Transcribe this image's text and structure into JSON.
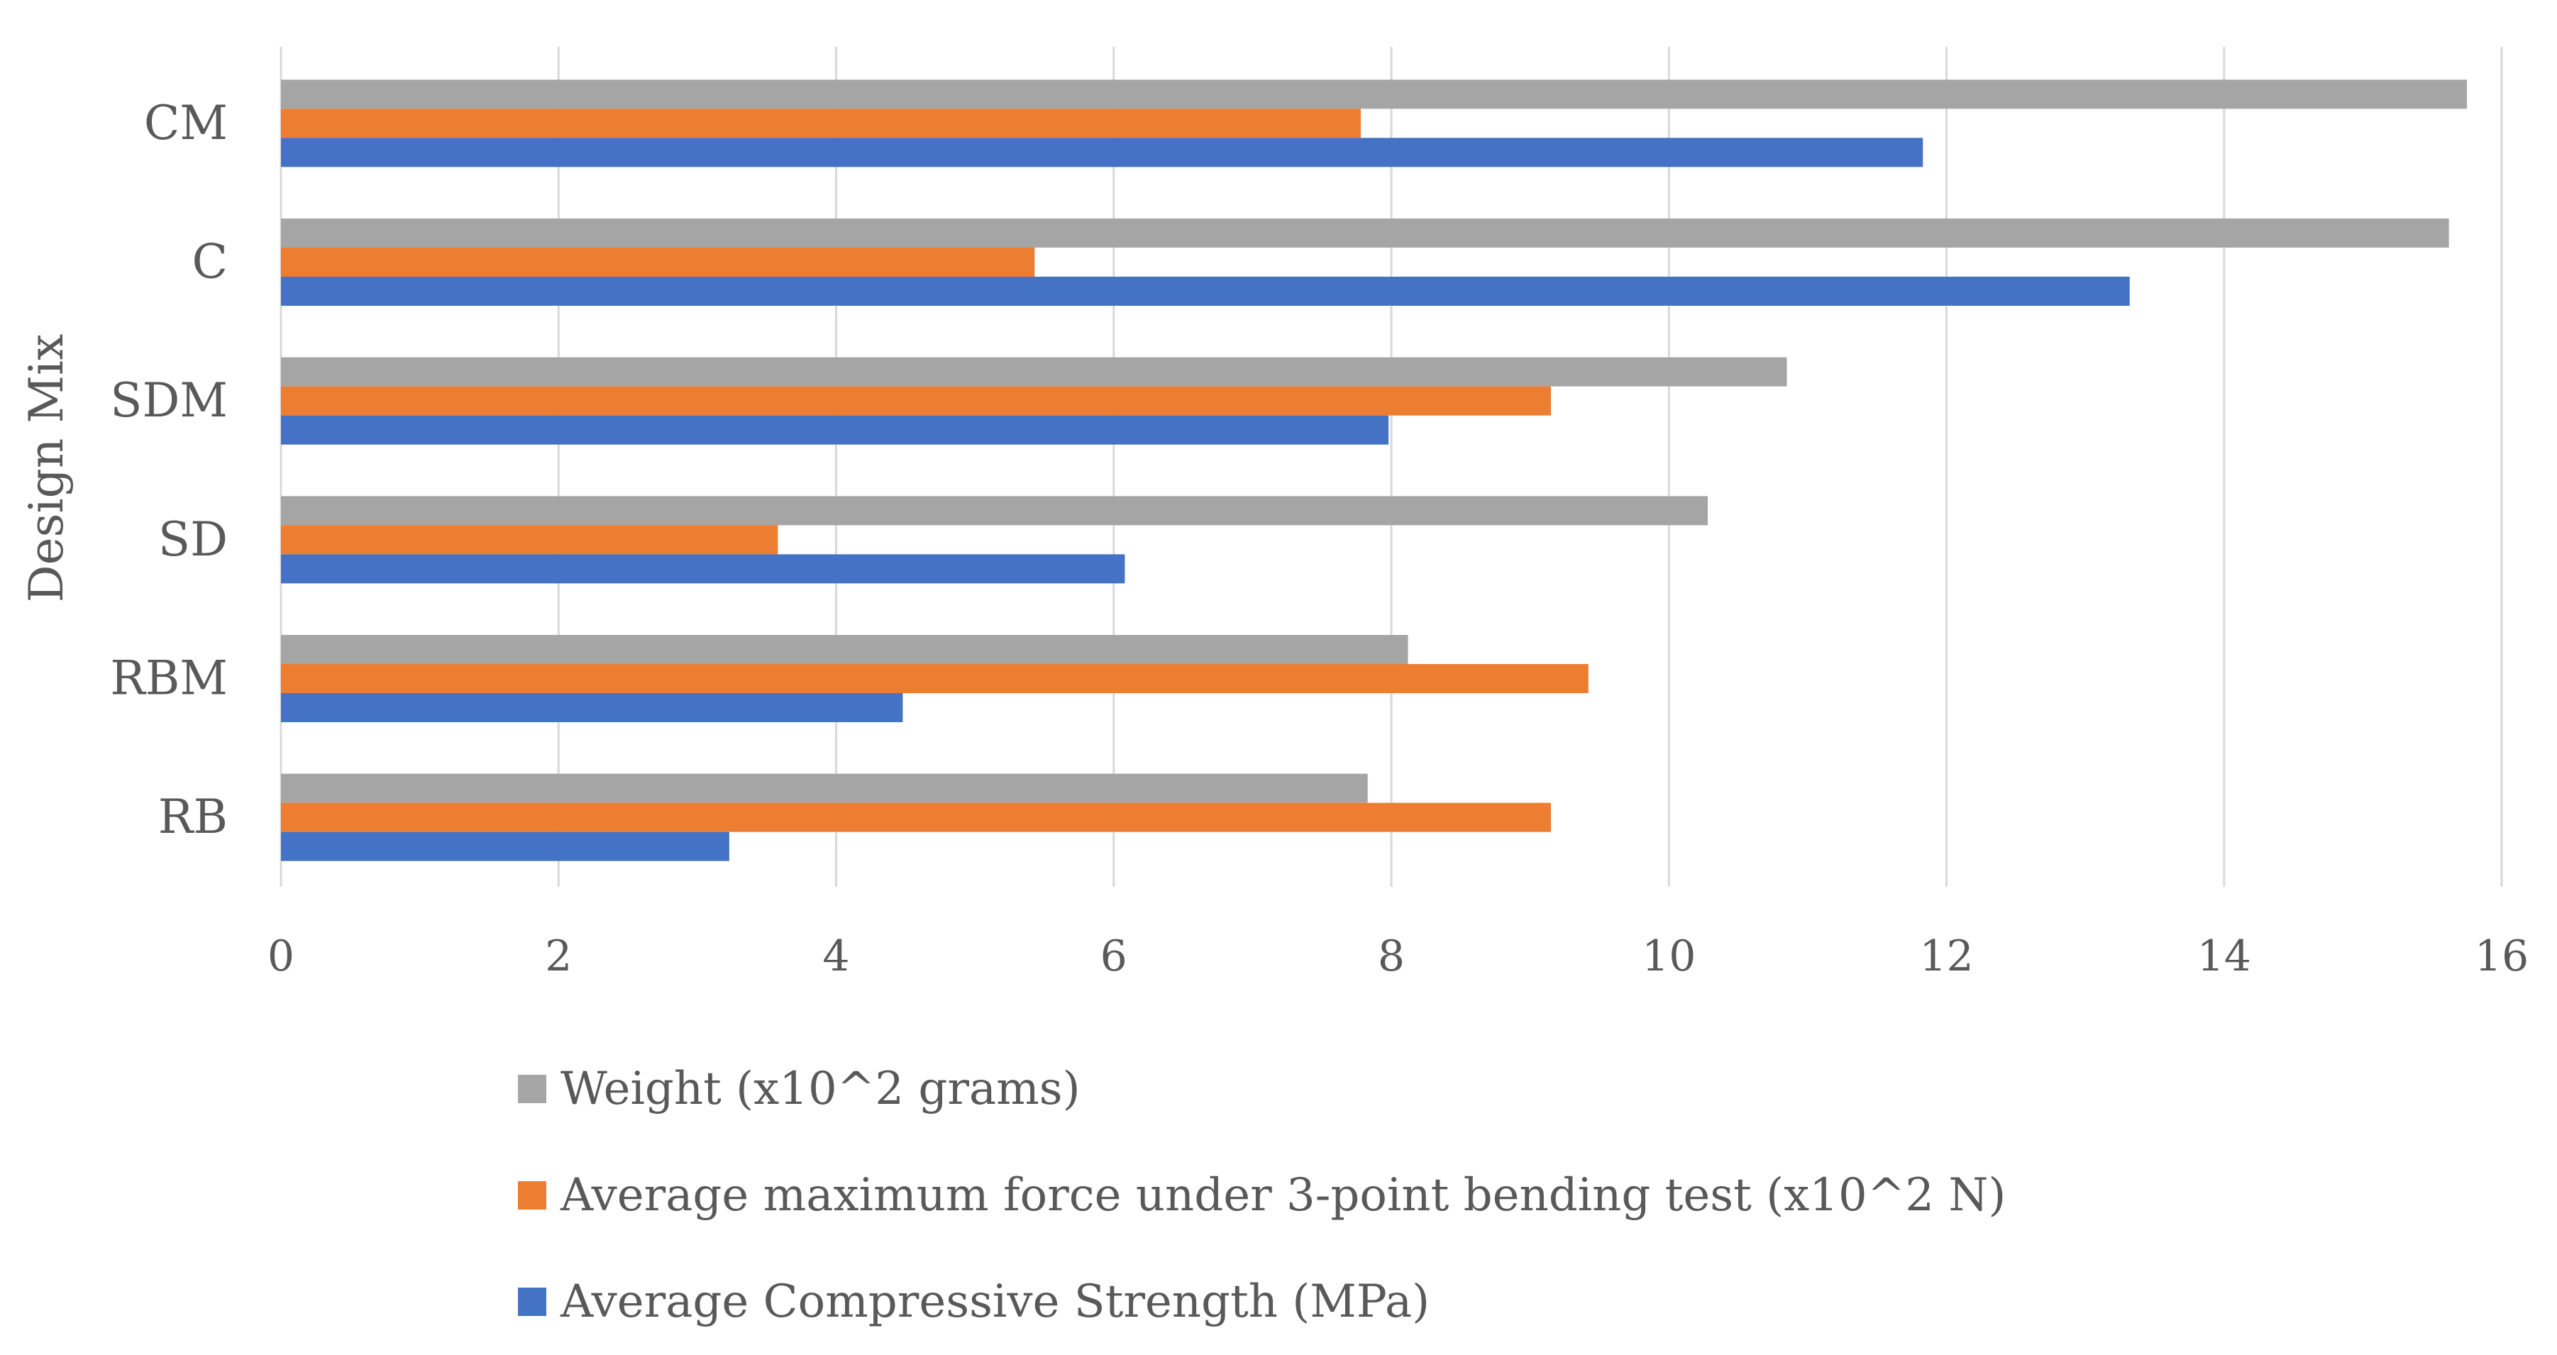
{
  "chart_data": {
    "type": "bar",
    "orientation": "horizontal",
    "title": "",
    "xlabel": "",
    "ylabel": "Design Mix",
    "xlim": [
      0,
      16
    ],
    "xticks": [
      "0",
      "2",
      "4",
      "6",
      "8",
      "10",
      "12",
      "14",
      "16"
    ],
    "categories": [
      "CM",
      "C",
      "SDM",
      "SD",
      "RBM",
      "RB"
    ],
    "grid": true,
    "legend_position": "bottom",
    "series": [
      {
        "name": "Weight (x10^2 grams)",
        "color": "#a5a5a5",
        "values": [
          15.75,
          15.62,
          10.85,
          10.28,
          8.12,
          7.83
        ]
      },
      {
        "name": "Average maximum force under 3-point bending test (x10^2 N)",
        "color": "#ed7d31",
        "values": [
          7.78,
          5.43,
          9.15,
          3.58,
          9.42,
          9.15
        ]
      },
      {
        "name": "Average Compressive Strength (MPa)",
        "color": "#4472c4",
        "values": [
          11.83,
          13.32,
          7.98,
          6.08,
          4.48,
          3.23
        ]
      }
    ]
  }
}
